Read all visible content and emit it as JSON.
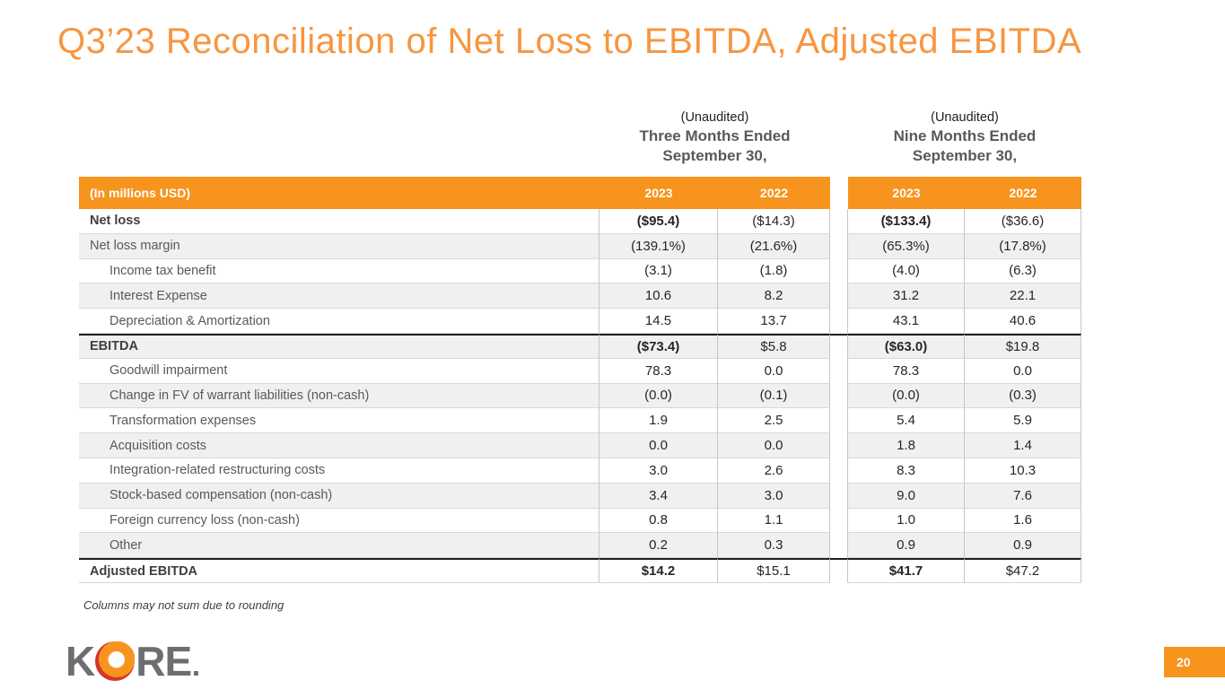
{
  "slide": {
    "title": "Q3’23 Reconciliation of Net Loss to EBITDA, Adjusted EBITDA",
    "footnote": "Columns may not sum due to rounding",
    "page_number": "20"
  },
  "logo": {
    "part1": "K",
    "part2": "RE",
    "o_icon": "kore-o-ring-icon"
  },
  "colors": {
    "accent_orange": "#F7941E",
    "title_orange": "#F79640",
    "logo_gray": "#6D6E71",
    "logo_red": "#D7342A",
    "row_stripe": "#F0F0F1"
  },
  "table": {
    "unit_label": "(In millions USD)",
    "groups": [
      {
        "unaudited": "(Unaudited)",
        "period_line1": "Three Months Ended",
        "period_line2": "September 30,",
        "years": [
          "2023",
          "2022"
        ]
      },
      {
        "unaudited": "(Unaudited)",
        "period_line1": "Nine Months Ended",
        "period_line2": "September 30,",
        "years": [
          "2023",
          "2022"
        ]
      }
    ],
    "rows": [
      {
        "label": "Net loss",
        "values": [
          "($95.4)",
          "($14.3)",
          "($133.4)",
          "($36.6)"
        ],
        "bold": true,
        "indent": false,
        "thick_top": false
      },
      {
        "label": "Net loss margin",
        "values": [
          "(139.1%)",
          "(21.6%)",
          "(65.3%)",
          "(17.8%)"
        ],
        "bold": false,
        "indent": false,
        "thick_top": false
      },
      {
        "label": "Income tax benefit",
        "values": [
          "(3.1)",
          "(1.8)",
          "(4.0)",
          "(6.3)"
        ],
        "bold": false,
        "indent": true,
        "thick_top": false
      },
      {
        "label": "Interest Expense",
        "values": [
          "10.6",
          "8.2",
          "31.2",
          "22.1"
        ],
        "bold": false,
        "indent": true,
        "thick_top": false
      },
      {
        "label": "Depreciation & Amortization",
        "values": [
          "14.5",
          "13.7",
          "43.1",
          "40.6"
        ],
        "bold": false,
        "indent": true,
        "thick_top": false
      },
      {
        "label": "EBITDA",
        "values": [
          "($73.4)",
          "$5.8",
          "($63.0)",
          "$19.8"
        ],
        "bold": true,
        "indent": false,
        "thick_top": true
      },
      {
        "label": "Goodwill impairment",
        "values": [
          "78.3",
          "0.0",
          "78.3",
          "0.0"
        ],
        "bold": false,
        "indent": true,
        "thick_top": false
      },
      {
        "label": "Change in FV of warrant liabilities (non-cash)",
        "values": [
          "(0.0)",
          "(0.1)",
          "(0.0)",
          "(0.3)"
        ],
        "bold": false,
        "indent": true,
        "thick_top": false
      },
      {
        "label": "Transformation expenses",
        "values": [
          "1.9",
          "2.5",
          "5.4",
          "5.9"
        ],
        "bold": false,
        "indent": true,
        "thick_top": false
      },
      {
        "label": "Acquisition costs",
        "values": [
          "0.0",
          "0.0",
          "1.8",
          "1.4"
        ],
        "bold": false,
        "indent": true,
        "thick_top": false
      },
      {
        "label": "Integration-related restructuring costs",
        "values": [
          "3.0",
          "2.6",
          "8.3",
          "10.3"
        ],
        "bold": false,
        "indent": true,
        "thick_top": false
      },
      {
        "label": "Stock-based compensation (non-cash)",
        "values": [
          "3.4",
          "3.0",
          "9.0",
          "7.6"
        ],
        "bold": false,
        "indent": true,
        "thick_top": false
      },
      {
        "label": "Foreign currency loss (non-cash)",
        "values": [
          "0.8",
          "1.1",
          "1.0",
          "1.6"
        ],
        "bold": false,
        "indent": true,
        "thick_top": false
      },
      {
        "label": "Other",
        "values": [
          "0.2",
          "0.3",
          "0.9",
          "0.9"
        ],
        "bold": false,
        "indent": true,
        "thick_top": false
      },
      {
        "label": "Adjusted EBITDA",
        "values": [
          "$14.2",
          "$15.1",
          "$41.7",
          "$47.2"
        ],
        "bold": true,
        "indent": false,
        "thick_top": true
      }
    ]
  }
}
